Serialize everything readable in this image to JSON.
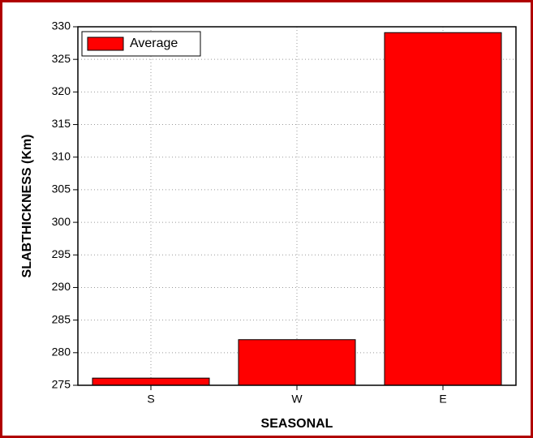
{
  "chart_data": {
    "type": "bar",
    "x_label": "SEASONAL",
    "y_label": "SLABTHICKNESS (Km)",
    "categories": [
      "S",
      "W",
      "E"
    ],
    "series": [
      {
        "name": "Average",
        "color": "#ff0000",
        "values": [
          276.1,
          282.0,
          329.1
        ]
      }
    ],
    "ylim": [
      275,
      330
    ],
    "yticks": [
      275,
      280,
      285,
      290,
      295,
      300,
      305,
      310,
      315,
      320,
      325,
      330
    ],
    "grid": true,
    "legend": "upper-left"
  }
}
